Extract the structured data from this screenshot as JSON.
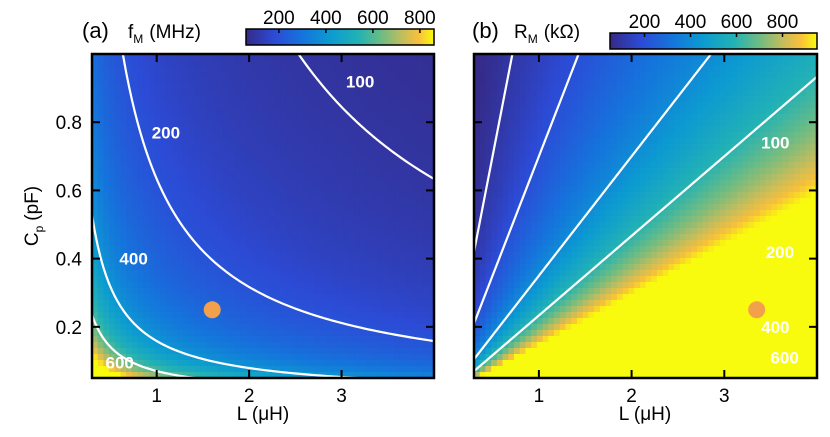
{
  "chart_data": [
    {
      "type": "heatmap",
      "panel_label": "(a)",
      "quantity": "f",
      "quantity_sub": "M",
      "unit": "(MHz)",
      "xlabel": "L (μH)",
      "ylabel": "C",
      "ylabel_sub": "p",
      "ylabel_unit": "(pF)",
      "xlim": [
        0.3,
        4.0
      ],
      "ylim": [
        0.05,
        1.0
      ],
      "x_ticks": [
        1,
        2,
        3
      ],
      "y_ticks": [
        0.2,
        0.4,
        0.6,
        0.8
      ],
      "colorbar": {
        "range": [
          60,
          860
        ],
        "ticks": [
          200,
          400,
          600,
          800
        ]
      },
      "contours": [
        {
          "label": "100",
          "level": 100,
          "label_x": 3.2,
          "label_y": 0.92
        },
        {
          "label": "200",
          "level": 200,
          "label_x": 1.1,
          "label_y": 0.77
        },
        {
          "label": "400",
          "level": 400,
          "label_x": 0.75,
          "label_y": 0.4
        },
        {
          "label": "600",
          "level": 600,
          "label_x": 0.6,
          "label_y": 0.095
        }
      ],
      "point": {
        "x": 1.6,
        "y": 0.25
      }
    },
    {
      "type": "heatmap",
      "panel_label": "(b)",
      "quantity": "R",
      "quantity_sub": "M",
      "unit": "(kΩ)",
      "xlabel": "L (μH)",
      "xlim": [
        0.3,
        4.0
      ],
      "ylim": [
        0.05,
        1.0
      ],
      "x_ticks": [
        1,
        2,
        3
      ],
      "y_ticks": [
        0.2,
        0.4,
        0.6,
        0.8
      ],
      "colorbar": {
        "range": [
          50,
          950
        ],
        "ticks": [
          200,
          400,
          600,
          800
        ]
      },
      "contours": [
        {
          "label": "100",
          "level": 100,
          "label_x": 3.55,
          "label_y": 0.74
        },
        {
          "label": "200",
          "level": 200,
          "label_x": 3.6,
          "label_y": 0.42
        },
        {
          "label": "400",
          "level": 400,
          "label_x": 3.55,
          "label_y": 0.2
        },
        {
          "label": "600",
          "level": 600,
          "label_x": 3.65,
          "label_y": 0.11
        }
      ],
      "point": {
        "x": 3.35,
        "y": 0.25
      }
    }
  ]
}
